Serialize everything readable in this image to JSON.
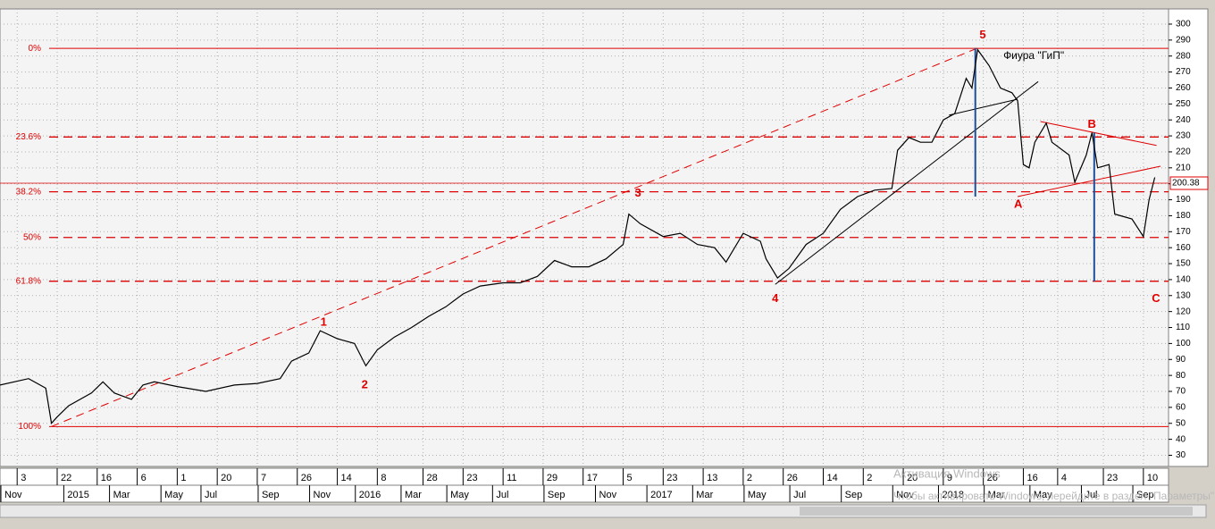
{
  "chart_data": {
    "type": "line",
    "x": [
      0,
      5,
      8,
      9,
      10,
      12,
      16,
      18,
      20,
      23,
      25,
      27,
      31,
      36,
      41,
      45,
      49,
      51,
      54,
      56,
      59,
      62,
      64,
      66,
      69,
      72,
      75,
      78,
      81,
      84,
      88,
      91,
      94,
      97,
      100,
      103,
      106,
      109,
      110,
      112,
      116,
      119,
      122,
      125,
      127,
      130,
      133,
      134,
      136,
      138,
      141,
      144,
      147,
      150,
      153,
      156,
      157,
      159,
      161,
      163,
      165,
      167,
      169,
      170,
      171,
      173,
      175,
      177,
      178,
      179,
      180,
      181,
      183,
      184,
      187,
      188,
      190,
      191,
      192,
      194,
      195,
      198,
      200,
      201,
      202
    ],
    "series": [
      {
        "color": "#000000",
        "values": [
          74,
          78,
          72,
          50,
          54,
          61,
          69,
          76,
          69,
          65,
          74,
          76,
          73,
          70,
          74,
          75,
          78,
          89,
          94,
          108,
          103,
          100,
          86,
          96,
          104,
          110,
          117,
          123,
          131,
          136,
          138,
          138,
          142,
          152,
          148,
          148,
          153,
          162,
          181,
          175,
          167,
          169,
          162,
          160,
          151,
          169,
          164,
          153,
          141,
          147,
          162,
          169,
          184,
          192,
          196,
          197,
          221,
          229,
          226,
          226,
          240,
          244,
          266,
          260,
          284,
          274,
          260,
          257,
          252,
          212,
          210,
          226,
          238,
          226,
          218,
          201,
          218,
          232,
          210,
          212,
          181,
          178,
          167,
          190,
          204
        ]
      }
    ],
    "xlim": [
      0,
      204.4
    ],
    "ylim": [
      23,
      309.5
    ],
    "yticks": [
      30,
      40,
      50,
      60,
      70,
      80,
      90,
      100,
      110,
      120,
      130,
      140,
      150,
      160,
      170,
      180,
      190,
      200,
      210,
      220,
      230,
      240,
      250,
      260,
      270,
      280,
      290,
      300
    ],
    "xticks": [
      {
        "value": 3,
        "label": "3"
      },
      {
        "value": 10,
        "label": "22"
      },
      {
        "value": 17,
        "label": "16"
      },
      {
        "value": 24,
        "label": "6"
      },
      {
        "value": 31,
        "label": "1"
      },
      {
        "value": 38,
        "label": "20"
      },
      {
        "value": 45,
        "label": "7"
      },
      {
        "value": 52,
        "label": "26"
      },
      {
        "value": 59,
        "label": "14"
      },
      {
        "value": 66,
        "label": "8"
      },
      {
        "value": 74,
        "label": "28"
      },
      {
        "value": 81,
        "label": "23"
      },
      {
        "value": 88,
        "label": "11"
      },
      {
        "value": 95,
        "label": "29"
      },
      {
        "value": 102,
        "label": "17"
      },
      {
        "value": 109,
        "label": "5"
      },
      {
        "value": 116,
        "label": "23"
      },
      {
        "value": 123,
        "label": "13"
      },
      {
        "value": 130,
        "label": "2"
      },
      {
        "value": 137,
        "label": "26"
      },
      {
        "value": 144,
        "label": "14"
      },
      {
        "value": 151,
        "label": "2"
      },
      {
        "value": 158,
        "label": "20"
      },
      {
        "value": 165,
        "label": "9"
      },
      {
        "value": 172,
        "label": "26"
      },
      {
        "value": 179,
        "label": "16"
      },
      {
        "value": 185,
        "label": "4"
      },
      {
        "value": 193,
        "label": "23"
      },
      {
        "value": 200,
        "label": "10"
      }
    ],
    "month_ticks": [
      {
        "value": 0,
        "label": "Nov"
      },
      {
        "value": 11,
        "label": "2015"
      },
      {
        "value": 19,
        "label": "Mar"
      },
      {
        "value": 28,
        "label": "May"
      },
      {
        "value": 35,
        "label": "Jul"
      },
      {
        "value": 45,
        "label": "Sep"
      },
      {
        "value": 54,
        "label": "Nov"
      },
      {
        "value": 62,
        "label": "2016"
      },
      {
        "value": 70,
        "label": "Mar"
      },
      {
        "value": 78,
        "label": "May"
      },
      {
        "value": 86,
        "label": "Jul"
      },
      {
        "value": 95,
        "label": "Sep"
      },
      {
        "value": 104,
        "label": "Nov"
      },
      {
        "value": 113,
        "label": "2017"
      },
      {
        "value": 121,
        "label": "Mar"
      },
      {
        "value": 130,
        "label": "May"
      },
      {
        "value": 138,
        "label": "Jul"
      },
      {
        "value": 147,
        "label": "Sep"
      },
      {
        "value": 156,
        "label": "Nov"
      },
      {
        "value": 164,
        "label": "2018"
      },
      {
        "value": 172,
        "label": "Mar"
      },
      {
        "value": 180,
        "label": "May"
      },
      {
        "value": 189,
        "label": "Jul"
      },
      {
        "value": 198,
        "label": "Sep"
      }
    ],
    "grid": true,
    "fib_levels": [
      {
        "label": "0%",
        "value": 284.8,
        "dashed": false
      },
      {
        "label": "23.6%",
        "value": 229.3,
        "dashed": true
      },
      {
        "label": "38.2%",
        "value": 195,
        "dashed": true
      },
      {
        "label": "50%",
        "value": 166.4,
        "dashed": true
      },
      {
        "label": "61.8%",
        "value": 139,
        "dashed": true
      },
      {
        "label": "100%",
        "value": 48,
        "dashed": false
      }
    ],
    "fib_color": "#e00000",
    "last_price": {
      "value": 200.38,
      "label": "200.38"
    },
    "wave_labels": [
      {
        "text": "1",
        "x": 56.6,
        "y": 113
      },
      {
        "text": "2",
        "x": 63.8,
        "y": 74
      },
      {
        "text": "3",
        "x": 111.6,
        "y": 194
      },
      {
        "text": "4",
        "x": 135.6,
        "y": 128
      },
      {
        "text": "5",
        "x": 171.9,
        "y": 293
      },
      {
        "text": "A",
        "x": 178.1,
        "y": 187
      },
      {
        "text": "B",
        "x": 191,
        "y": 237
      },
      {
        "text": "C",
        "x": 202.2,
        "y": 128
      }
    ],
    "annotation": {
      "text": "Фиура \"ГиП\"",
      "x": 175.5,
      "y": 280
    },
    "trend_lines": [
      {
        "color": "#e00000",
        "dashed": true,
        "x": [
          9,
          171
        ],
        "y": [
          48,
          285
        ]
      },
      {
        "color": "#000000",
        "dashed": false,
        "x": [
          135.6,
          181.6
        ],
        "y": [
          137,
          264
        ]
      },
      {
        "color": "#000000",
        "dashed": false,
        "x": [
          166,
          178
        ],
        "y": [
          243,
          253
        ]
      },
      {
        "color": "#e00000",
        "dashed": false,
        "x": [
          182,
          202.3
        ],
        "y": [
          239,
          224
        ]
      },
      {
        "color": "#e00000",
        "dashed": false,
        "x": [
          178,
          203
        ],
        "y": [
          192,
          211
        ]
      },
      {
        "color": "#1f4e9a",
        "dashed": false,
        "x": [
          170.6,
          170.6
        ],
        "y": [
          285,
          192
        ]
      },
      {
        "color": "#1f4e9a",
        "dashed": false,
        "x": [
          191.4,
          191.4
        ],
        "y": [
          232,
          139
        ]
      }
    ]
  },
  "watermark": {
    "title": "Активация Windows",
    "text": "Чтобы активировать Windows, перейдите в раздел \"Параметры\"."
  }
}
